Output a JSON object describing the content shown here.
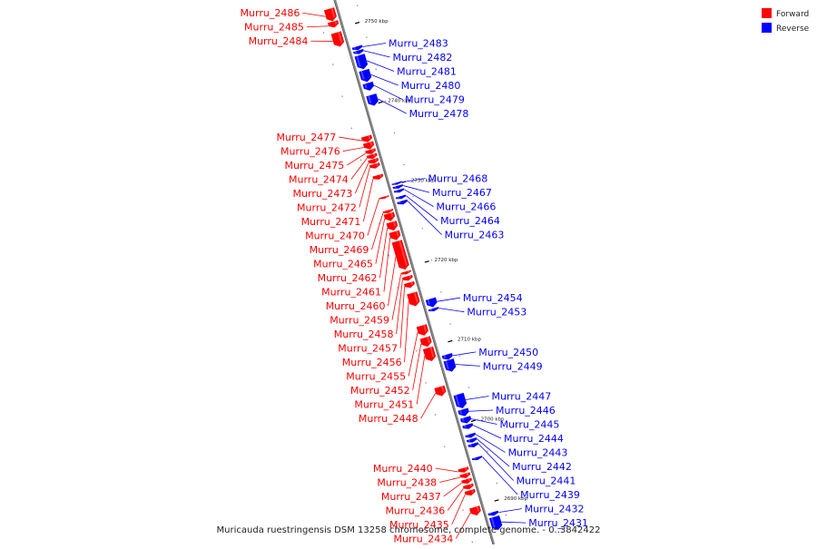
{
  "caption": "Muricauda ruestringensis DSM 13258 chromosome, complete genome. - 0..3842422",
  "legend": [
    {
      "label": "Forward",
      "color": "#ff0000"
    },
    {
      "label": "Reverse",
      "color": "#0000ff"
    }
  ],
  "colors": {
    "forward": "#ff0000",
    "reverse": "#0000ff",
    "axis": "#888888"
  },
  "axis_ticks": [
    {
      "label": "2750 kbp",
      "kbp": 2750
    },
    {
      "label": "2740 kbp",
      "kbp": 2740
    },
    {
      "label": "2730 kbp",
      "kbp": 2730
    },
    {
      "label": "2720 kbp",
      "kbp": 2720
    },
    {
      "label": "2710 kbp",
      "kbp": 2710
    },
    {
      "label": "2700 kbp",
      "kbp": 2700
    },
    {
      "label": "2690 kbp",
      "kbp": 2690
    }
  ],
  "forward_genes": [
    {
      "label": "Murru_2486",
      "start": 2752.6,
      "end": 2751.0
    },
    {
      "label": "Murru_2485",
      "start": 2751.0,
      "end": 2750.2
    },
    {
      "label": "Murru_2484",
      "start": 2749.6,
      "end": 2747.8
    },
    {
      "label": "Murru_2477",
      "start": 2736.6,
      "end": 2735.8
    },
    {
      "label": "Murru_2476",
      "start": 2735.8,
      "end": 2734.9
    },
    {
      "label": "Murru_2475",
      "start": 2734.9,
      "end": 2734.3
    },
    {
      "label": "Murru_2474",
      "start": 2734.3,
      "end": 2733.7
    },
    {
      "label": "Murru_2473",
      "start": 2733.7,
      "end": 2733.1
    },
    {
      "label": "Murru_2472",
      "start": 2733.1,
      "end": 2732.5
    },
    {
      "label": "Murru_2471",
      "start": 2731.7,
      "end": 2731.1
    },
    {
      "label": "Murru_2470",
      "start": 2729.0,
      "end": 2728.7
    },
    {
      "label": "Murru_2469",
      "start": 2727.3,
      "end": 2726.9
    },
    {
      "label": "Murru_2465",
      "start": 2726.9,
      "end": 2725.9
    },
    {
      "label": "Murru_2462",
      "start": 2725.8,
      "end": 2724.7
    },
    {
      "label": "Murru_2461",
      "start": 2724.6,
      "end": 2723.5
    },
    {
      "label": "Murru_2460",
      "start": 2723.4,
      "end": 2719.8
    },
    {
      "label": "Murru_2459",
      "start": 2719.6,
      "end": 2719.2
    },
    {
      "label": "Murru_2458",
      "start": 2719.0,
      "end": 2718.4
    },
    {
      "label": "Murru_2457",
      "start": 2718.2,
      "end": 2717.5
    },
    {
      "label": "Murru_2456",
      "start": 2716.9,
      "end": 2715.2
    },
    {
      "label": "Murru_2455",
      "start": 2712.8,
      "end": 2711.5
    },
    {
      "label": "Murru_2452",
      "start": 2711.3,
      "end": 2710.1
    },
    {
      "label": "Murru_2451",
      "start": 2710.0,
      "end": 2708.3
    },
    {
      "label": "Murru_2448",
      "start": 2705.1,
      "end": 2703.9
    },
    {
      "label": "Murru_2440",
      "start": 2694.9,
      "end": 2694.3
    },
    {
      "label": "Murru_2438",
      "start": 2694.2,
      "end": 2693.6
    },
    {
      "label": "Murru_2437",
      "start": 2693.5,
      "end": 2692.9
    },
    {
      "label": "Murru_2436",
      "start": 2692.8,
      "end": 2692.2
    },
    {
      "label": "Murru_2435",
      "start": 2692.1,
      "end": 2691.4
    },
    {
      "label": "Murru_2434",
      "start": 2690.0,
      "end": 2688.9
    }
  ],
  "reverse_genes": [
    {
      "label": "Murru_2483",
      "start": 2747.3,
      "end": 2746.8
    },
    {
      "label": "Murru_2482",
      "start": 2746.8,
      "end": 2746.3
    },
    {
      "label": "Murru_2481",
      "start": 2746.2,
      "end": 2744.4
    },
    {
      "label": "Murru_2480",
      "start": 2744.3,
      "end": 2742.8
    },
    {
      "label": "Murru_2479",
      "start": 2742.7,
      "end": 2741.7
    },
    {
      "label": "Murru_2478",
      "start": 2741.2,
      "end": 2739.8
    },
    {
      "label": "Murru_2468",
      "start": 2730.2,
      "end": 2729.9
    },
    {
      "label": "Murru_2467",
      "start": 2729.8,
      "end": 2729.4
    },
    {
      "label": "Murru_2466",
      "start": 2729.3,
      "end": 2728.9
    },
    {
      "label": "Murru_2464",
      "start": 2728.5,
      "end": 2728.1
    },
    {
      "label": "Murru_2463",
      "start": 2727.9,
      "end": 2727.4
    },
    {
      "label": "Murru_2454",
      "start": 2715.6,
      "end": 2714.5
    },
    {
      "label": "Murru_2453",
      "start": 2714.4,
      "end": 2714.0
    },
    {
      "label": "Murru_2450",
      "start": 2708.6,
      "end": 2707.9
    },
    {
      "label": "Murru_2449",
      "start": 2707.9,
      "end": 2706.4
    },
    {
      "label": "Murru_2447",
      "start": 2703.6,
      "end": 2701.8
    },
    {
      "label": "Murru_2446",
      "start": 2701.7,
      "end": 2700.8
    },
    {
      "label": "Murru_2445",
      "start": 2700.7,
      "end": 2699.9
    },
    {
      "label": "Murru_2444",
      "start": 2699.8,
      "end": 2699.2
    },
    {
      "label": "Murru_2443",
      "start": 2698.6,
      "end": 2698.1
    },
    {
      "label": "Murru_2442",
      "start": 2698.0,
      "end": 2697.5
    },
    {
      "label": "Murru_2441",
      "start": 2697.4,
      "end": 2696.9
    },
    {
      "label": "Murru_2439",
      "start": 2695.7,
      "end": 2695.3
    },
    {
      "label": "Murru_2432",
      "start": 2688.8,
      "end": 2688.3
    },
    {
      "label": "Murru_2431",
      "start": 2688.2,
      "end": 2686.5
    }
  ]
}
